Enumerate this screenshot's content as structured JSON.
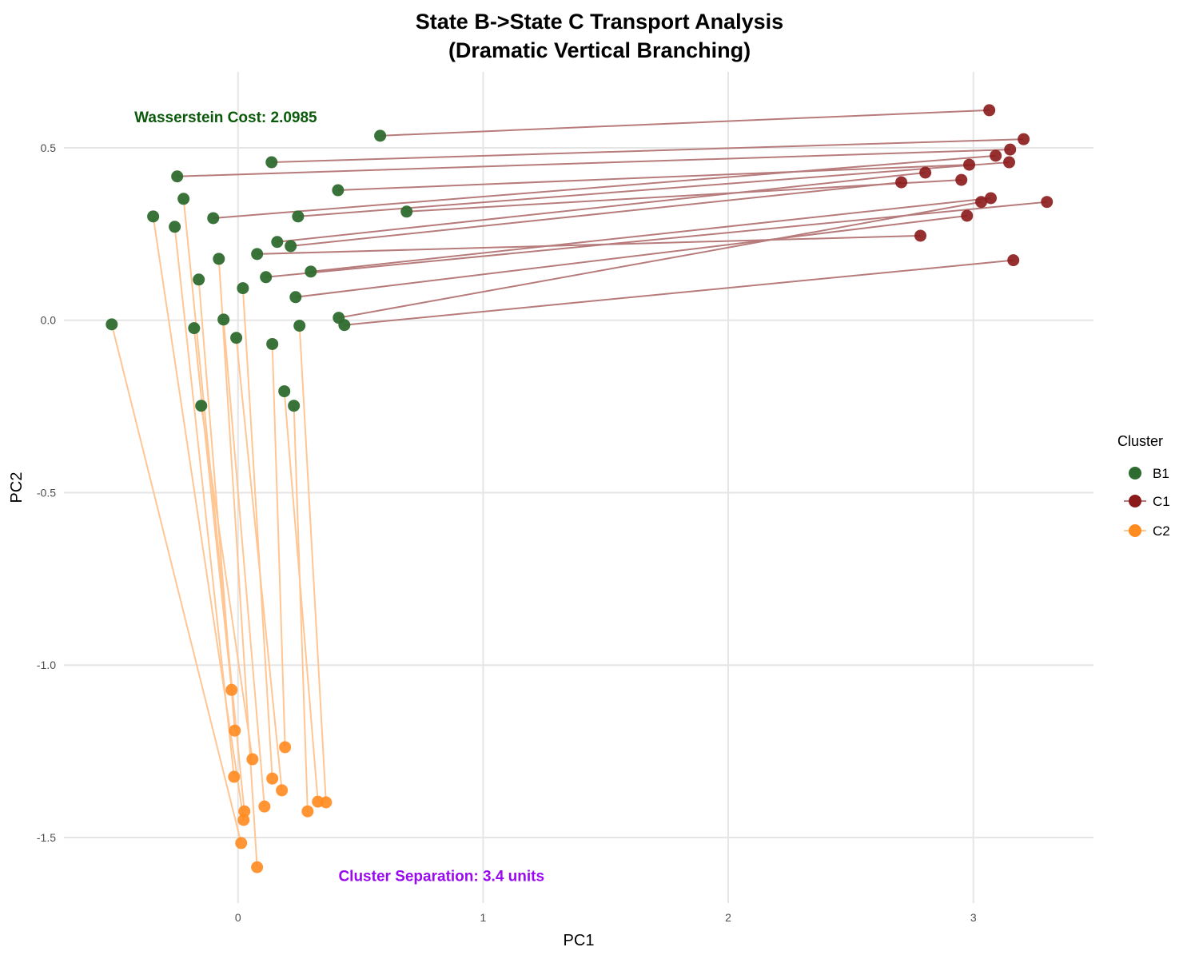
{
  "chart_data": {
    "type": "scatter",
    "title": "State B->State C Transport Analysis",
    "subtitle": "(Dramatic Vertical Branching)",
    "xlabel": "PC1",
    "ylabel": "PC2",
    "xlim": [
      -0.71,
      3.49
    ],
    "ylim": [
      -1.69,
      0.72
    ],
    "xticks": [
      0,
      1,
      2,
      3
    ],
    "yticks": [
      0.5,
      0.0,
      -0.5,
      -1.0,
      -1.5
    ],
    "ytick_labels": [
      "0.5",
      "0.0",
      "-0.5",
      "-1.0",
      "-1.5"
    ],
    "grid": true,
    "legend": {
      "title": "Cluster",
      "position": "right",
      "entries": [
        "B1",
        "C1",
        "C2"
      ]
    },
    "colors": {
      "B1": "#2e6b2e",
      "C1": "#8b1a1a",
      "C2": "#ff8a1f",
      "C1_line": "#b77b7b",
      "C2_line": "#ffc694"
    },
    "annotations": [
      {
        "text": "Wasserstein Cost: 2.0985",
        "x": -0.05,
        "y": 0.59,
        "color": "#0b5a0b"
      },
      {
        "text": "Cluster Separation: 3.4 units",
        "x": 0.83,
        "y": -1.61,
        "color": "#9a0af0"
      }
    ],
    "transport": [
      {
        "from": [
          0.58,
          0.535
        ],
        "to": [
          3.065,
          0.609
        ],
        "target": "C1"
      },
      {
        "from": [
          0.137,
          0.458
        ],
        "to": [
          3.205,
          0.525
        ],
        "target": "C1"
      },
      {
        "from": [
          -0.248,
          0.417
        ],
        "to": [
          3.15,
          0.495
        ],
        "target": "C1"
      },
      {
        "from": [
          0.408,
          0.377
        ],
        "to": [
          2.983,
          0.451
        ],
        "target": "C1"
      },
      {
        "from": [
          -0.101,
          0.296
        ],
        "to": [
          3.091,
          0.477
        ],
        "target": "C1"
      },
      {
        "from": [
          0.245,
          0.301
        ],
        "to": [
          3.146,
          0.458
        ],
        "target": "C1"
      },
      {
        "from": [
          0.688,
          0.315
        ],
        "to": [
          2.951,
          0.407
        ],
        "target": "C1"
      },
      {
        "from": [
          0.16,
          0.227
        ],
        "to": [
          2.804,
          0.428
        ],
        "target": "C1"
      },
      {
        "from": [
          0.215,
          0.215
        ],
        "to": [
          2.706,
          0.4
        ],
        "target": "C1"
      },
      {
        "from": [
          0.078,
          0.192
        ],
        "to": [
          2.784,
          0.245
        ],
        "target": "C1"
      },
      {
        "from": [
          0.297,
          0.141
        ],
        "to": [
          3.071,
          0.354
        ],
        "target": "C1"
      },
      {
        "from": [
          0.114,
          0.125
        ],
        "to": [
          3.3,
          0.343
        ],
        "target": "C1"
      },
      {
        "from": [
          0.235,
          0.067
        ],
        "to": [
          2.974,
          0.303
        ],
        "target": "C1"
      },
      {
        "from": [
          0.411,
          0.007
        ],
        "to": [
          3.032,
          0.343
        ],
        "target": "C1"
      },
      {
        "from": [
          0.434,
          -0.014
        ],
        "to": [
          3.163,
          0.174
        ],
        "target": "C1"
      },
      {
        "from": [
          -0.515,
          -0.012
        ],
        "to": [
          0.013,
          -1.516
        ],
        "target": "C2"
      },
      {
        "from": [
          -0.346,
          0.301
        ],
        "to": [
          0.023,
          -1.449
        ],
        "target": "C2"
      },
      {
        "from": [
          -0.222,
          0.352
        ],
        "to": [
          0.026,
          -1.424
        ],
        "target": "C2"
      },
      {
        "from": [
          -0.258,
          0.271
        ],
        "to": [
          -0.016,
          -1.324
        ],
        "target": "C2"
      },
      {
        "from": [
          -0.16,
          0.118
        ],
        "to": [
          -0.013,
          -1.19
        ],
        "target": "C2"
      },
      {
        "from": [
          -0.179,
          -0.023
        ],
        "to": [
          -0.026,
          -1.072
        ],
        "target": "C2"
      },
      {
        "from": [
          -0.15,
          -0.248
        ],
        "to": [
          0.059,
          -1.273
        ],
        "target": "C2"
      },
      {
        "from": [
          -0.078,
          0.178
        ],
        "to": [
          0.078,
          -1.586
        ],
        "target": "C2"
      },
      {
        "from": [
          -0.059,
          0.002
        ],
        "to": [
          0.108,
          -1.41
        ],
        "target": "C2"
      },
      {
        "from": [
          -0.007,
          -0.051
        ],
        "to": [
          0.179,
          -1.363
        ],
        "target": "C2"
      },
      {
        "from": [
          0.02,
          0.093
        ],
        "to": [
          0.14,
          -1.329
        ],
        "target": "C2"
      },
      {
        "from": [
          0.14,
          -0.069
        ],
        "to": [
          0.192,
          -1.238
        ],
        "target": "C2"
      },
      {
        "from": [
          0.189,
          -0.206
        ],
        "to": [
          0.326,
          -1.396
        ],
        "target": "C2"
      },
      {
        "from": [
          0.228,
          -0.248
        ],
        "to": [
          0.284,
          -1.424
        ],
        "target": "C2"
      },
      {
        "from": [
          0.251,
          -0.016
        ],
        "to": [
          0.359,
          -1.398
        ],
        "target": "C2"
      }
    ]
  }
}
